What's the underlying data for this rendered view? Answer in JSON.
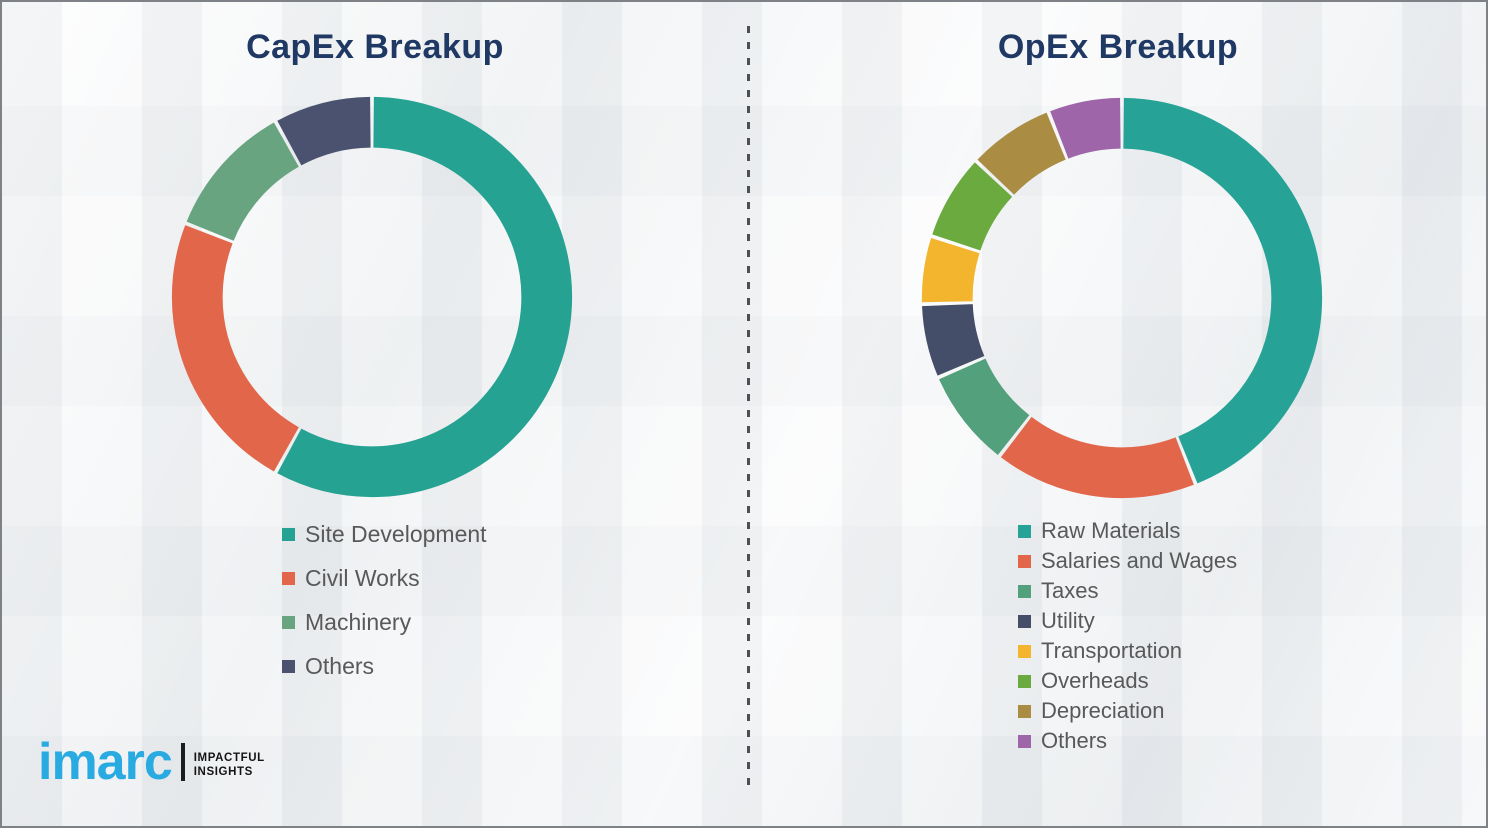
{
  "page": {
    "background_color": "#eef0f2",
    "frame_border_color": "#7e8286",
    "title_color": "#1f3864",
    "legend_text_color": "#595959",
    "divider_style": "vertical-dashed",
    "divider_color": "#4d4f52"
  },
  "chart_data": [
    {
      "type": "pie",
      "variant": "donut",
      "title": "CapEx Breakup",
      "unit": "percent",
      "start_angle_deg": 0,
      "direction": "clockwise",
      "legend_position": "below-left",
      "segments": [
        {
          "label": "Site Development",
          "value": 58,
          "color": "#26a292"
        },
        {
          "label": "Civil Works",
          "value": 23,
          "color": "#e2674a"
        },
        {
          "label": "Machinery",
          "value": 11,
          "color": "#67a47f"
        },
        {
          "label": "Others",
          "value": 8,
          "color": "#4a5270"
        }
      ]
    },
    {
      "type": "pie",
      "variant": "donut",
      "title": "OpEx Breakup",
      "unit": "percent",
      "start_angle_deg": 0,
      "direction": "clockwise",
      "legend_position": "below-left",
      "segments": [
        {
          "label": "Raw Materials",
          "value": 44,
          "color": "#26a396"
        },
        {
          "label": "Salaries and Wages",
          "value": 16.5,
          "color": "#e2674a"
        },
        {
          "label": "Taxes",
          "value": 8,
          "color": "#52a07c"
        },
        {
          "label": "Utility",
          "value": 6,
          "color": "#454e68"
        },
        {
          "label": "Transportation",
          "value": 5.5,
          "color": "#f4b52e"
        },
        {
          "label": "Overheads",
          "value": 7,
          "color": "#6baa3f"
        },
        {
          "label": "Depreciation",
          "value": 7,
          "color": "#ab8c43"
        },
        {
          "label": "Others",
          "value": 6,
          "color": "#9e66a8"
        }
      ]
    }
  ],
  "logo": {
    "brand": "imarc",
    "brand_color": "#29abe2",
    "tagline": "IMPACTFUL\nINSIGHTS"
  }
}
